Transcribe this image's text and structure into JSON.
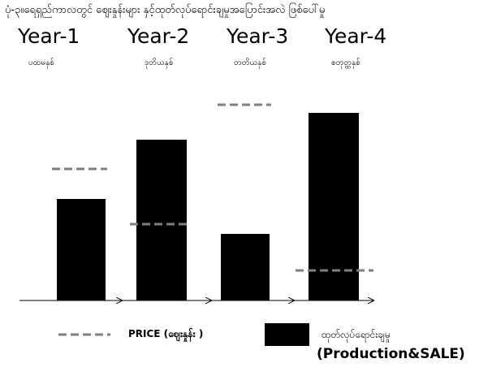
{
  "title": "ပုံ-၃။ရေရှည်ကာလတွင် ဈေးနှုန်းများ နှင့်ထုတ်လုပ်ရောင်းချမှုအပြောင်းအလဲ ဖြစ်ပေါ်မှု",
  "chart_data": {
    "type": "bar",
    "title": "ပုံ-၃။ရေရှည်ကာလတွင် ဈေးနှုန်းများ နှင့်ထုတ်လုပ်ရောင်းချမှုအပြောင်းအလဲ ဖြစ်ပေါ်မှု",
    "categories": [
      "Year-1",
      "Year-2",
      "Year-3",
      "Year-4"
    ],
    "category_sublabels": [
      "ပထမနှစ်",
      "ဒုတိယနှစ်",
      "တတိယနှစ်",
      "စတုတ္ထနှစ်"
    ],
    "series": [
      {
        "name": "ထုတ်လုပ်ရောင်းချမှု (Production&SALE)",
        "kind": "bar",
        "values": [
          125,
          198,
          82,
          231
        ],
        "color": "#000000"
      },
      {
        "name": "PRICE (ဈေးနှုန်း )",
        "kind": "dash",
        "values": [
          162,
          94,
          241,
          37
        ],
        "color": "#7f7f7f"
      }
    ],
    "ylim": [
      0,
      265
    ],
    "xlabel": "",
    "ylabel": "",
    "grid": false,
    "axes_visible": false,
    "legend": [
      {
        "label": "PRICE (ဈေးနှုန်း )",
        "style": "dashed",
        "color": "#7f7f7f"
      },
      {
        "label_mm": "ထုတ်လုပ်ရောင်းချမှု",
        "label_en": "(Production&SALE)",
        "style": "box",
        "color": "#000000"
      }
    ],
    "legend_position": "bottom"
  }
}
